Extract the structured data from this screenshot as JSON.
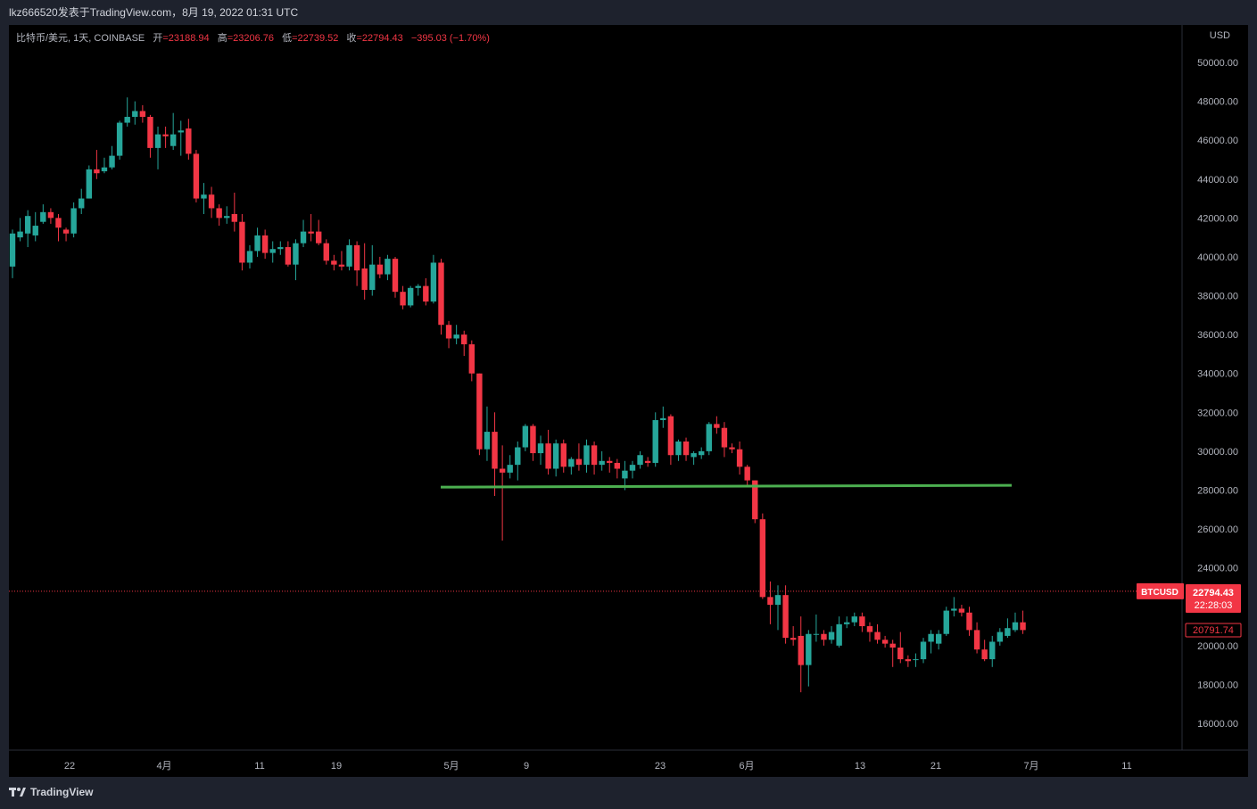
{
  "header": {
    "publisher": "lkz666520发表于TradingView.com，8月 19, 2022 01:31 UTC"
  },
  "legend": {
    "symbol": "比特币/美元, 1天, COINBASE",
    "open_label": "开",
    "open": "=23188.94",
    "high_label": "高",
    "high": "=23206.76",
    "low_label": "低",
    "low": "=22739.52",
    "close_label": "收",
    "close": "=22794.43",
    "change": "−395.03 (−1.70%)"
  },
  "axis": {
    "currency": "USD",
    "y_ticks": [
      "50000.00",
      "48000.00",
      "46000.00",
      "44000.00",
      "42000.00",
      "40000.00",
      "38000.00",
      "36000.00",
      "34000.00",
      "32000.00",
      "30000.00",
      "28000.00",
      "26000.00",
      "24000.00",
      "22000.00",
      "20000.00",
      "18000.00",
      "16000.00"
    ],
    "x_ticks": [
      "22",
      "4月",
      "11",
      "19",
      "5月",
      "9",
      "23",
      "6月",
      "13",
      "21",
      "7月",
      "11"
    ]
  },
  "price_labels": {
    "symbol_tag": "BTCUSD",
    "last_price": "22794.43",
    "countdown": "22:28:03",
    "prev_level": "20791.74"
  },
  "footer": {
    "brand": "TradingView"
  },
  "colors": {
    "up": "#26a69a",
    "down": "#f23645",
    "background": "#000000",
    "frame": "#1e222d",
    "support_line": "#4caf50"
  },
  "chart_data": {
    "type": "candlestick",
    "title": "比特币/美元, 1天, COINBASE",
    "ylim": [
      15000,
      51500
    ],
    "support_level": 28200,
    "last_price": 22794.43,
    "candles": [
      {
        "o": 39500,
        "c": 41200,
        "h": 41400,
        "l": 38900
      },
      {
        "o": 41000,
        "c": 41300,
        "h": 42000,
        "l": 40800
      },
      {
        "o": 41200,
        "c": 42100,
        "h": 42400,
        "l": 40500
      },
      {
        "o": 41100,
        "c": 41600,
        "h": 42300,
        "l": 40800
      },
      {
        "o": 41800,
        "c": 42300,
        "h": 42700,
        "l": 41700
      },
      {
        "o": 42300,
        "c": 42000,
        "h": 42500,
        "l": 41700
      },
      {
        "o": 42000,
        "c": 41500,
        "h": 42200,
        "l": 40800
      },
      {
        "o": 41400,
        "c": 41200,
        "h": 41500,
        "l": 40800
      },
      {
        "o": 41200,
        "c": 42500,
        "h": 42800,
        "l": 41000
      },
      {
        "o": 42500,
        "c": 43000,
        "h": 43500,
        "l": 42200
      },
      {
        "o": 43000,
        "c": 44500,
        "h": 44700,
        "l": 43000
      },
      {
        "o": 44500,
        "c": 44300,
        "h": 45500,
        "l": 44000
      },
      {
        "o": 44400,
        "c": 44600,
        "h": 45100,
        "l": 44300
      },
      {
        "o": 44600,
        "c": 45200,
        "h": 45700,
        "l": 44500
      },
      {
        "o": 45200,
        "c": 46900,
        "h": 47000,
        "l": 45000
      },
      {
        "o": 46900,
        "c": 47200,
        "h": 48200,
        "l": 46700
      },
      {
        "o": 47200,
        "c": 47500,
        "h": 48000,
        "l": 46800
      },
      {
        "o": 47500,
        "c": 47200,
        "h": 47800,
        "l": 46900
      },
      {
        "o": 47200,
        "c": 45600,
        "h": 47300,
        "l": 45100
      },
      {
        "o": 45600,
        "c": 46300,
        "h": 46700,
        "l": 44500
      },
      {
        "o": 46300,
        "c": 46200,
        "h": 46700,
        "l": 45600
      },
      {
        "o": 45700,
        "c": 46300,
        "h": 47400,
        "l": 45500
      },
      {
        "o": 46400,
        "c": 46500,
        "h": 47000,
        "l": 45200
      },
      {
        "o": 46600,
        "c": 45300,
        "h": 47100,
        "l": 45000
      },
      {
        "o": 45300,
        "c": 43000,
        "h": 45500,
        "l": 42800
      },
      {
        "o": 43000,
        "c": 43200,
        "h": 43800,
        "l": 42200
      },
      {
        "o": 43200,
        "c": 42500,
        "h": 43600,
        "l": 42000
      },
      {
        "o": 42500,
        "c": 42000,
        "h": 42700,
        "l": 41600
      },
      {
        "o": 42000,
        "c": 42100,
        "h": 42600,
        "l": 41700
      },
      {
        "o": 42200,
        "c": 41800,
        "h": 43300,
        "l": 41300
      },
      {
        "o": 41800,
        "c": 39700,
        "h": 42200,
        "l": 39300
      },
      {
        "o": 39700,
        "c": 40300,
        "h": 40600,
        "l": 39400
      },
      {
        "o": 40300,
        "c": 41100,
        "h": 41500,
        "l": 40000
      },
      {
        "o": 41100,
        "c": 40200,
        "h": 41400,
        "l": 39900
      },
      {
        "o": 40200,
        "c": 40400,
        "h": 40800,
        "l": 39700
      },
      {
        "o": 40400,
        "c": 40500,
        "h": 40800,
        "l": 40100
      },
      {
        "o": 40500,
        "c": 39600,
        "h": 40800,
        "l": 39500
      },
      {
        "o": 39600,
        "c": 40700,
        "h": 40900,
        "l": 38800
      },
      {
        "o": 40700,
        "c": 41300,
        "h": 41900,
        "l": 40500
      },
      {
        "o": 41300,
        "c": 41200,
        "h": 42200,
        "l": 40800
      },
      {
        "o": 41300,
        "c": 40700,
        "h": 41900,
        "l": 40600
      },
      {
        "o": 40700,
        "c": 39800,
        "h": 40900,
        "l": 39600
      },
      {
        "o": 39800,
        "c": 39600,
        "h": 40100,
        "l": 39300
      },
      {
        "o": 39600,
        "c": 39500,
        "h": 40300,
        "l": 39300
      },
      {
        "o": 39500,
        "c": 40600,
        "h": 40900,
        "l": 39300
      },
      {
        "o": 40600,
        "c": 39300,
        "h": 40800,
        "l": 38500
      },
      {
        "o": 39400,
        "c": 38300,
        "h": 40700,
        "l": 37800
      },
      {
        "o": 38300,
        "c": 39600,
        "h": 40600,
        "l": 38000
      },
      {
        "o": 39600,
        "c": 39100,
        "h": 40000,
        "l": 38900
      },
      {
        "o": 39100,
        "c": 39900,
        "h": 40100,
        "l": 38800
      },
      {
        "o": 39900,
        "c": 38200,
        "h": 40000,
        "l": 37900
      },
      {
        "o": 38200,
        "c": 37500,
        "h": 38500,
        "l": 37300
      },
      {
        "o": 37500,
        "c": 38400,
        "h": 38500,
        "l": 37400
      },
      {
        "o": 38400,
        "c": 38500,
        "h": 38600,
        "l": 38000
      },
      {
        "o": 38500,
        "c": 37700,
        "h": 38900,
        "l": 37500
      },
      {
        "o": 37700,
        "c": 39700,
        "h": 40100,
        "l": 37600
      },
      {
        "o": 39700,
        "c": 36500,
        "h": 39900,
        "l": 36000
      },
      {
        "o": 36500,
        "c": 35800,
        "h": 36700,
        "l": 35300
      },
      {
        "o": 35800,
        "c": 36000,
        "h": 36500,
        "l": 35500
      },
      {
        "o": 36000,
        "c": 35500,
        "h": 36200,
        "l": 34900
      },
      {
        "o": 35500,
        "c": 34000,
        "h": 35700,
        "l": 33600
      },
      {
        "o": 34000,
        "c": 30100,
        "h": 34000,
        "l": 29800
      },
      {
        "o": 30100,
        "c": 31000,
        "h": 32300,
        "l": 29500
      },
      {
        "o": 31000,
        "c": 29100,
        "h": 32000,
        "l": 27700
      },
      {
        "o": 29100,
        "c": 28900,
        "h": 30300,
        "l": 25400
      },
      {
        "o": 28900,
        "c": 29300,
        "h": 29800,
        "l": 28600
      },
      {
        "o": 29300,
        "c": 30200,
        "h": 30500,
        "l": 28500
      },
      {
        "o": 30200,
        "c": 31300,
        "h": 31400,
        "l": 30000
      },
      {
        "o": 31300,
        "c": 29900,
        "h": 31400,
        "l": 29500
      },
      {
        "o": 29900,
        "c": 30400,
        "h": 30800,
        "l": 29300
      },
      {
        "o": 30400,
        "c": 29100,
        "h": 31100,
        "l": 28800
      },
      {
        "o": 29100,
        "c": 30400,
        "h": 30600,
        "l": 28700
      },
      {
        "o": 30400,
        "c": 29200,
        "h": 30600,
        "l": 28900
      },
      {
        "o": 29200,
        "c": 29600,
        "h": 29700,
        "l": 28800
      },
      {
        "o": 29600,
        "c": 29300,
        "h": 30400,
        "l": 29000
      },
      {
        "o": 29300,
        "c": 30300,
        "h": 30600,
        "l": 28900
      },
      {
        "o": 30300,
        "c": 29300,
        "h": 30500,
        "l": 28800
      },
      {
        "o": 29300,
        "c": 29500,
        "h": 30000,
        "l": 29000
      },
      {
        "o": 29500,
        "c": 29400,
        "h": 29700,
        "l": 28900
      },
      {
        "o": 29400,
        "c": 29100,
        "h": 29600,
        "l": 28600
      },
      {
        "o": 28600,
        "c": 29000,
        "h": 29500,
        "l": 28000
      },
      {
        "o": 29000,
        "c": 29300,
        "h": 29500,
        "l": 28600
      },
      {
        "o": 29300,
        "c": 29800,
        "h": 30000,
        "l": 29100
      },
      {
        "o": 29500,
        "c": 29400,
        "h": 29700,
        "l": 29200
      },
      {
        "o": 29400,
        "c": 31600,
        "h": 32000,
        "l": 29200
      },
      {
        "o": 31600,
        "c": 31700,
        "h": 32300,
        "l": 31200
      },
      {
        "o": 31800,
        "c": 29800,
        "h": 31900,
        "l": 29300
      },
      {
        "o": 29800,
        "c": 30500,
        "h": 30600,
        "l": 29500
      },
      {
        "o": 30500,
        "c": 29800,
        "h": 30700,
        "l": 29500
      },
      {
        "o": 29700,
        "c": 29900,
        "h": 30000,
        "l": 29300
      },
      {
        "o": 29800,
        "c": 30000,
        "h": 30200,
        "l": 29600
      },
      {
        "o": 30000,
        "c": 31400,
        "h": 31500,
        "l": 29800
      },
      {
        "o": 31400,
        "c": 31200,
        "h": 31800,
        "l": 30900
      },
      {
        "o": 31200,
        "c": 30200,
        "h": 31500,
        "l": 29700
      },
      {
        "o": 30200,
        "c": 30100,
        "h": 30400,
        "l": 29900
      },
      {
        "o": 30100,
        "c": 29200,
        "h": 30500,
        "l": 28800
      },
      {
        "o": 29200,
        "c": 28500,
        "h": 29300,
        "l": 28200
      },
      {
        "o": 28500,
        "c": 26500,
        "h": 28500,
        "l": 26300
      },
      {
        "o": 26500,
        "c": 22500,
        "h": 26800,
        "l": 22400
      },
      {
        "o": 22500,
        "c": 22100,
        "h": 23300,
        "l": 21100
      },
      {
        "o": 22100,
        "c": 22600,
        "h": 23100,
        "l": 20800
      },
      {
        "o": 22600,
        "c": 20400,
        "h": 23100,
        "l": 20100
      },
      {
        "o": 20400,
        "c": 20300,
        "h": 21000,
        "l": 20000
      },
      {
        "o": 20500,
        "c": 19000,
        "h": 21500,
        "l": 17600
      },
      {
        "o": 19000,
        "c": 20600,
        "h": 20800,
        "l": 17900
      },
      {
        "o": 20600,
        "c": 20600,
        "h": 21600,
        "l": 20200
      },
      {
        "o": 20600,
        "c": 20300,
        "h": 20800,
        "l": 20000
      },
      {
        "o": 20300,
        "c": 20700,
        "h": 21000,
        "l": 20100
      },
      {
        "o": 20000,
        "c": 21100,
        "h": 21500,
        "l": 19900
      },
      {
        "o": 21100,
        "c": 21200,
        "h": 21500,
        "l": 20900
      },
      {
        "o": 21200,
        "c": 21500,
        "h": 21700,
        "l": 21000
      },
      {
        "o": 21500,
        "c": 21000,
        "h": 21700,
        "l": 20700
      },
      {
        "o": 21000,
        "c": 20700,
        "h": 21200,
        "l": 20200
      },
      {
        "o": 20700,
        "c": 20300,
        "h": 21100,
        "l": 20100
      },
      {
        "o": 20300,
        "c": 20100,
        "h": 20500,
        "l": 19900
      },
      {
        "o": 20100,
        "c": 19900,
        "h": 20300,
        "l": 18900
      },
      {
        "o": 19900,
        "c": 19300,
        "h": 20700,
        "l": 19100
      },
      {
        "o": 19300,
        "c": 19200,
        "h": 19500,
        "l": 18900
      },
      {
        "o": 19300,
        "c": 19300,
        "h": 19600,
        "l": 18900
      },
      {
        "o": 19300,
        "c": 20200,
        "h": 20400,
        "l": 19100
      },
      {
        "o": 20200,
        "c": 20600,
        "h": 20800,
        "l": 19600
      },
      {
        "o": 20100,
        "c": 20600,
        "h": 20800,
        "l": 19800
      },
      {
        "o": 20600,
        "c": 21800,
        "h": 22000,
        "l": 20500
      },
      {
        "o": 21800,
        "c": 21900,
        "h": 22500,
        "l": 21500
      },
      {
        "o": 21900,
        "c": 21700,
        "h": 22100,
        "l": 21500
      },
      {
        "o": 21700,
        "c": 20800,
        "h": 22000,
        "l": 20500
      },
      {
        "o": 20800,
        "c": 19800,
        "h": 21200,
        "l": 19600
      },
      {
        "o": 19800,
        "c": 19300,
        "h": 20300,
        "l": 19200
      },
      {
        "o": 19300,
        "c": 20200,
        "h": 20500,
        "l": 18900
      },
      {
        "o": 20200,
        "c": 20700,
        "h": 20900,
        "l": 20000
      },
      {
        "o": 20500,
        "c": 20900,
        "h": 21400,
        "l": 20400
      },
      {
        "o": 20800,
        "c": 21200,
        "h": 21700,
        "l": 20700
      },
      {
        "o": 21200,
        "c": 20800,
        "h": 21800,
        "l": 20600
      }
    ]
  }
}
